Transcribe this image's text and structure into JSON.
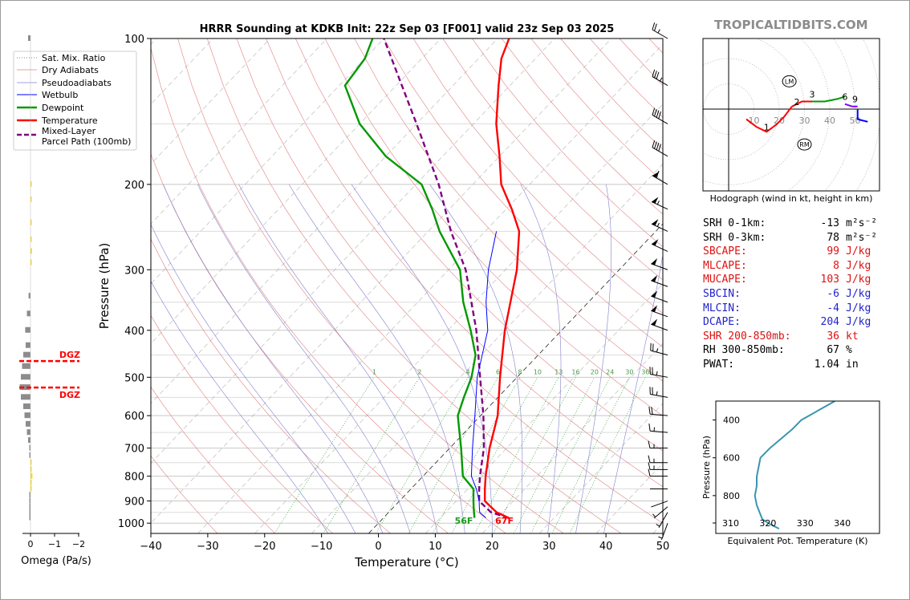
{
  "title": "HRRR Sounding at KDKB Init: 22z Sep 03 [F001] valid 23z Sep 03 2025",
  "site_brand": "TROPICALTIDBITS.COM",
  "colors": {
    "temperature": "#ff0000",
    "dewpoint": "#009900",
    "wetbulb": "#0000ff",
    "parcel": "#800080",
    "theta_e": "#3a95b0",
    "omega_pos": "#ffdd00",
    "omega_neg": "#8c8c8c"
  },
  "chart_data": [
    {
      "type": "line",
      "name": "skewt",
      "xlabel": "Temperature (°C)",
      "ylabel": "Pressure (hPa)",
      "xlim": [
        -40,
        50
      ],
      "ylim": [
        1050,
        100
      ],
      "yscale": "log",
      "x_ticks": [
        "−40",
        "−30",
        "−20",
        "−10",
        "0",
        "10",
        "20",
        "30",
        "40",
        "50"
      ],
      "y_ticks": [
        100,
        200,
        300,
        400,
        500,
        600,
        700,
        800,
        900,
        1000
      ],
      "legend": [
        "Sat. Mix. Ratio",
        "Dry Adiabats",
        "Pseudoadiabats",
        "Wetbulb",
        "Dewpoint",
        "Temperature",
        "Mixed-Layer Parcel Path (100mb)"
      ],
      "legend_position": "upper-left",
      "mix_ratio_labels": [
        "1",
        "2",
        "4",
        "6",
        "8",
        "10",
        "13",
        "16",
        "20",
        "24",
        "30",
        "36"
      ],
      "surface_labels": {
        "dewpoint": "56F",
        "temperature": "67F"
      },
      "temperature": [
        [
          975,
          22
        ],
        [
          950,
          19
        ],
        [
          925,
          17
        ],
        [
          900,
          15
        ],
        [
          850,
          13
        ],
        [
          800,
          11
        ],
        [
          700,
          7
        ],
        [
          600,
          3
        ],
        [
          500,
          -3
        ],
        [
          400,
          -10
        ],
        [
          300,
          -18
        ],
        [
          250,
          -24
        ],
        [
          225,
          -29
        ],
        [
          200,
          -35
        ],
        [
          175,
          -40
        ],
        [
          150,
          -46
        ],
        [
          125,
          -52
        ],
        [
          110,
          -56
        ],
        [
          100,
          -58
        ]
      ],
      "dewpoint": [
        [
          975,
          16
        ],
        [
          950,
          15
        ],
        [
          925,
          14
        ],
        [
          900,
          13
        ],
        [
          850,
          11
        ],
        [
          800,
          7
        ],
        [
          700,
          2
        ],
        [
          600,
          -4
        ],
        [
          550,
          -6
        ],
        [
          500,
          -8
        ],
        [
          450,
          -11
        ],
        [
          400,
          -16
        ],
        [
          350,
          -22
        ],
        [
          300,
          -28
        ],
        [
          250,
          -38
        ],
        [
          225,
          -43
        ],
        [
          200,
          -49
        ],
        [
          175,
          -60
        ],
        [
          150,
          -70
        ],
        [
          125,
          -79
        ],
        [
          110,
          -80
        ],
        [
          100,
          -82
        ]
      ],
      "wetbulb": [
        [
          975,
          18
        ],
        [
          950,
          16
        ],
        [
          925,
          15
        ],
        [
          900,
          14
        ],
        [
          850,
          11.5
        ],
        [
          800,
          8.5
        ],
        [
          700,
          4
        ],
        [
          600,
          -1
        ],
        [
          500,
          -7
        ],
        [
          400,
          -13
        ],
        [
          350,
          -18
        ],
        [
          300,
          -23
        ],
        [
          250,
          -28
        ]
      ],
      "parcel": [
        [
          975,
          22
        ],
        [
          950,
          18
        ],
        [
          900,
          14
        ],
        [
          850,
          12
        ],
        [
          800,
          10
        ],
        [
          700,
          6
        ],
        [
          600,
          0.5
        ],
        [
          500,
          -6.5
        ],
        [
          400,
          -15
        ],
        [
          300,
          -27
        ],
        [
          250,
          -36
        ],
        [
          200,
          -46
        ],
        [
          150,
          -60
        ],
        [
          125,
          -69
        ],
        [
          100,
          -80
        ]
      ],
      "dry_adiabats_theta_c": [
        -30,
        -20,
        -10,
        0,
        10,
        20,
        30,
        40,
        50,
        60,
        70,
        80,
        90,
        100,
        110,
        120,
        130,
        140,
        150,
        160,
        170,
        180,
        190,
        200
      ],
      "pseudo_adiabats_c": [
        -10,
        -5,
        0,
        5,
        10,
        15,
        20,
        25,
        30,
        35,
        40
      ],
      "mix_ratios": [
        1,
        2,
        4,
        6,
        8,
        10,
        13,
        16,
        20,
        24,
        30,
        36
      ],
      "wind_barbs_kt": [
        [
          1000,
          7,
          200
        ],
        [
          950,
          8,
          210
        ],
        [
          925,
          5,
          230
        ],
        [
          900,
          3,
          250
        ],
        [
          850,
          4,
          270
        ],
        [
          800,
          10,
          270
        ],
        [
          775,
          15,
          270
        ],
        [
          750,
          15,
          270
        ],
        [
          700,
          15,
          270
        ],
        [
          650,
          15,
          275
        ],
        [
          600,
          20,
          275
        ],
        [
          550,
          25,
          280
        ],
        [
          500,
          25,
          280
        ],
        [
          450,
          25,
          285
        ],
        [
          400,
          50,
          290
        ],
        [
          375,
          50,
          290
        ],
        [
          350,
          50,
          290
        ],
        [
          325,
          50,
          290
        ],
        [
          300,
          50,
          290
        ],
        [
          275,
          50,
          295
        ],
        [
          250,
          55,
          295
        ],
        [
          225,
          55,
          295
        ],
        [
          200,
          60,
          300
        ],
        [
          175,
          40,
          300
        ],
        [
          150,
          40,
          300
        ],
        [
          125,
          35,
          300
        ],
        [
          100,
          25,
          300
        ]
      ]
    },
    {
      "type": "line",
      "name": "hodograph",
      "title": "Hodograph (wind in kt, height in km)",
      "ring_labels": [
        "10",
        "20",
        "30",
        "40",
        "50"
      ],
      "height_labels": [
        "1",
        "2",
        "3",
        "6",
        "9"
      ],
      "markers": [
        "LM",
        "RM"
      ],
      "segments": [
        {
          "color": "#ff0000",
          "points": [
            [
              7,
              -4
            ],
            [
              11,
              -7
            ],
            [
              15,
              -9
            ],
            [
              19,
              -6
            ],
            [
              22,
              -3
            ],
            [
              25,
              1
            ]
          ]
        },
        {
          "color": "#ff0000",
          "points": [
            [
              25,
              1
            ],
            [
              29,
              3
            ],
            [
              33,
              3
            ]
          ]
        },
        {
          "color": "#009900",
          "points": [
            [
              33,
              3
            ],
            [
              38,
              3
            ],
            [
              43,
              4
            ],
            [
              46,
              5
            ]
          ]
        },
        {
          "color": "#8000ff",
          "points": [
            [
              46,
              2
            ],
            [
              49,
              1
            ],
            [
              51,
              1
            ]
          ]
        },
        {
          "color": "#0000ff",
          "points": [
            [
              51,
              0
            ],
            [
              51,
              -4
            ],
            [
              55,
              -5
            ]
          ]
        }
      ],
      "lm": [
        24,
        11
      ],
      "rm": [
        30,
        -14
      ],
      "label_points": {
        "1": [
          15,
          -9
        ],
        "2": [
          27,
          1
        ],
        "3": [
          33,
          4
        ],
        "6": [
          46,
          3
        ],
        "9": [
          50,
          2
        ]
      }
    },
    {
      "type": "line",
      "name": "theta_e",
      "xlabel": "Equivalent Pot. Temperature (K)",
      "ylabel": "Pressure (hPa)",
      "xlim": [
        306,
        350
      ],
      "ylim": [
        1000,
        300
      ],
      "x_ticks": [
        "310",
        "320",
        "330",
        "340"
      ],
      "y_ticks": [
        "400",
        "600",
        "800"
      ],
      "points": [
        [
          975,
          323
        ],
        [
          950,
          320.5
        ],
        [
          925,
          318.5
        ],
        [
          900,
          318
        ],
        [
          850,
          317
        ],
        [
          800,
          316.5
        ],
        [
          750,
          317
        ],
        [
          700,
          317
        ],
        [
          650,
          317.5
        ],
        [
          600,
          318
        ],
        [
          550,
          320.5
        ],
        [
          500,
          323.5
        ],
        [
          450,
          326.5
        ],
        [
          400,
          329
        ],
        [
          350,
          333.5
        ],
        [
          300,
          338
        ]
      ]
    },
    {
      "type": "bar",
      "name": "omega",
      "xlabel": "Omega (Pa/s)",
      "x_ticks": [
        "0",
        "−1",
        "−2"
      ],
      "markers": [
        "DGZ",
        "DGZ"
      ],
      "dgz_pressures": [
        463,
        525
      ],
      "values": [
        [
          100,
          0.1
        ],
        [
          200,
          -0.02
        ],
        [
          215,
          -0.02
        ],
        [
          240,
          -0.03
        ],
        [
          260,
          -0.05
        ],
        [
          275,
          -0.06
        ],
        [
          290,
          -0.05
        ],
        [
          340,
          0.08
        ],
        [
          370,
          0.15
        ],
        [
          400,
          0.22
        ],
        [
          430,
          0.2
        ],
        [
          450,
          0.3
        ],
        [
          475,
          0.35
        ],
        [
          500,
          0.4
        ],
        [
          525,
          0.45
        ],
        [
          550,
          0.4
        ],
        [
          575,
          0.3
        ],
        [
          600,
          0.25
        ],
        [
          625,
          0.2
        ],
        [
          650,
          0.15
        ],
        [
          675,
          0.1
        ],
        [
          700,
          0.05
        ],
        [
          725,
          0.04
        ],
        [
          750,
          -0.03
        ],
        [
          775,
          -0.05
        ],
        [
          800,
          -0.08
        ],
        [
          825,
          -0.05
        ],
        [
          850,
          -0.02
        ],
        [
          875,
          0.02
        ],
        [
          900,
          0.05
        ],
        [
          925,
          0.05
        ],
        [
          950,
          0.05
        ],
        [
          975,
          0.05
        ]
      ]
    }
  ],
  "indices": [
    {
      "label": "SRH 0-1km:",
      "value": "-13",
      "unit": "m²s⁻²",
      "color": "#000000"
    },
    {
      "label": "SRH 0-3km:",
      "value": "78",
      "unit": "m²s⁻²",
      "color": "#000000"
    },
    {
      "label": "SBCAPE:",
      "value": "99",
      "unit": "J/kg",
      "color": "#dd1111"
    },
    {
      "label": "MLCAPE:",
      "value": "8",
      "unit": "J/kg",
      "color": "#dd1111"
    },
    {
      "label": "MUCAPE:",
      "value": "103",
      "unit": "J/kg",
      "color": "#dd1111"
    },
    {
      "label": "SBCIN:",
      "value": "-6",
      "unit": "J/kg",
      "color": "#2222cc"
    },
    {
      "label": "MLCIN:",
      "value": "-4",
      "unit": "J/kg",
      "color": "#2222cc"
    },
    {
      "label": "DCAPE:",
      "value": "204",
      "unit": "J/kg",
      "color": "#2222cc"
    },
    {
      "label": "SHR 200-850mb:",
      "value": "36",
      "unit": "kt",
      "color": "#dd1111"
    },
    {
      "label": "RH 300-850mb:",
      "value": "67",
      "unit": "%",
      "color": "#000000"
    },
    {
      "label": "PWAT:",
      "value": "1.04",
      "unit": "in",
      "color": "#000000"
    }
  ]
}
